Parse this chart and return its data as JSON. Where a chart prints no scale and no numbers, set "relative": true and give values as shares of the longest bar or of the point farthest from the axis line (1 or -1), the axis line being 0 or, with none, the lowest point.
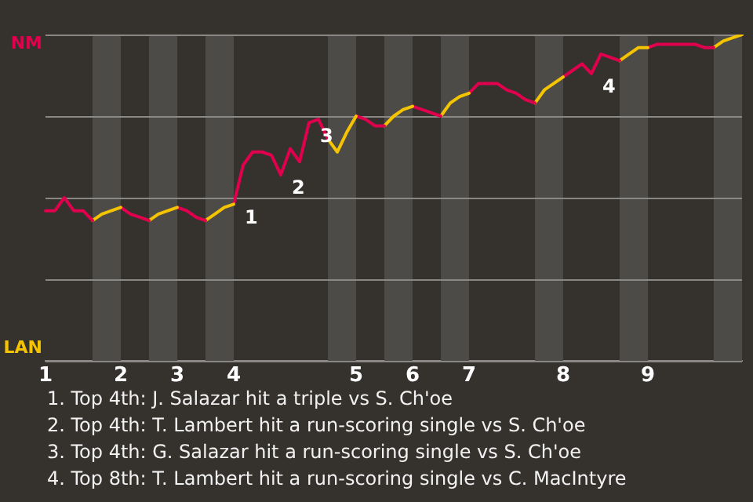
{
  "chart_data": {
    "type": "line",
    "relative": true,
    "categories": [
      "1",
      null,
      null,
      null,
      null,
      null,
      null,
      null,
      "2",
      null,
      null,
      null,
      null,
      null,
      "3",
      null,
      null,
      null,
      null,
      null,
      "4",
      null,
      null,
      null,
      null,
      null,
      null,
      null,
      null,
      null,
      null,
      null,
      null,
      "5",
      null,
      null,
      null,
      null,
      null,
      "6",
      null,
      null,
      null,
      null,
      null,
      "7",
      null,
      null,
      null,
      null,
      null,
      null,
      null,
      null,
      null,
      "8",
      null,
      null,
      null,
      null,
      null,
      null,
      null,
      null,
      "9",
      null,
      null,
      null,
      null,
      null,
      null,
      null,
      null,
      null,
      null
    ],
    "series": [
      {
        "name": "NM",
        "color": "#e0004d",
        "values": [
          0.46,
          0.46,
          0.5,
          0.46,
          0.46,
          0.43,
          null,
          null,
          null,
          null,
          null,
          null,
          null,
          null,
          null,
          null,
          null,
          null,
          null,
          null,
          null,
          null,
          null,
          null,
          null,
          null,
          null,
          null,
          null,
          null,
          null,
          null,
          null,
          null,
          null,
          null,
          null,
          null,
          null,
          null,
          null,
          null,
          null,
          null,
          null,
          null,
          null,
          null,
          null,
          null,
          null,
          null,
          null,
          null,
          null,
          null,
          null,
          null,
          null,
          null,
          null,
          null,
          null,
          null,
          null,
          null,
          null,
          null,
          null,
          null,
          null,
          null,
          null,
          null,
          null
        ]
      },
      {
        "name": "LAN",
        "color": "#f5c400",
        "values": [
          null,
          null,
          null,
          null,
          null,
          0.43,
          0.45,
          0.46,
          0.47,
          null,
          null,
          null,
          null,
          null,
          null,
          null,
          null,
          null,
          null,
          null,
          null,
          null,
          null,
          null,
          null,
          null,
          null,
          null,
          null,
          null,
          null,
          null,
          null,
          null,
          null,
          null,
          null,
          null,
          null,
          null,
          null,
          null,
          null,
          null,
          null,
          null,
          null,
          null,
          null,
          null,
          null,
          null,
          null,
          null,
          null,
          null,
          null,
          null,
          null,
          null,
          null,
          null,
          null,
          null,
          null,
          null,
          null,
          null,
          null,
          null,
          null,
          null,
          null,
          null,
          null
        ]
      },
      {
        "color": "#e0004d",
        "values": [
          null,
          null,
          null,
          null,
          null,
          null,
          null,
          null,
          0.47,
          0.45,
          0.44,
          0.43,
          null,
          null,
          null,
          null,
          null,
          null,
          null,
          null,
          null,
          null,
          null,
          null,
          null,
          null,
          null,
          null,
          null,
          null,
          null,
          null,
          null,
          null,
          null,
          null,
          null,
          null,
          null,
          null,
          null,
          null,
          null,
          null,
          null,
          null,
          null,
          null,
          null,
          null,
          null,
          null,
          null,
          null,
          null,
          null,
          null,
          null,
          null,
          null,
          null,
          null,
          null,
          null,
          null,
          null,
          null,
          null,
          null,
          null,
          null,
          null,
          null,
          null,
          null
        ]
      },
      {
        "color": "#f5c400",
        "values": [
          null,
          null,
          null,
          null,
          null,
          null,
          null,
          null,
          null,
          null,
          null,
          0.43,
          0.45,
          0.46,
          0.47,
          null,
          null,
          null,
          null,
          null,
          null,
          null,
          null,
          null,
          null,
          null,
          null,
          null,
          null,
          null,
          null,
          null,
          null,
          null,
          null,
          null,
          null,
          null,
          null,
          null,
          null,
          null,
          null,
          null,
          null,
          null,
          null,
          null,
          null,
          null,
          null,
          null,
          null,
          null,
          null,
          null,
          null,
          null,
          null,
          null,
          null,
          null,
          null,
          null,
          null,
          null,
          null,
          null,
          null,
          null,
          null,
          null,
          null,
          null,
          null
        ]
      },
      {
        "color": "#e0004d",
        "values": [
          null,
          null,
          null,
          null,
          null,
          null,
          null,
          null,
          null,
          null,
          null,
          null,
          null,
          null,
          0.47,
          0.46,
          0.44,
          0.43,
          null,
          null,
          null,
          null,
          null,
          null,
          null,
          null,
          null,
          null,
          null,
          null,
          null,
          null,
          null,
          null,
          null,
          null,
          null,
          null,
          null,
          null,
          null,
          null,
          null,
          null,
          null,
          null,
          null,
          null,
          null,
          null,
          null,
          null,
          null,
          null,
          null,
          null,
          null,
          null,
          null,
          null,
          null,
          null,
          null,
          null,
          null,
          null,
          null,
          null,
          null,
          null,
          null,
          null,
          null,
          null,
          null
        ]
      },
      {
        "color": "#f5c400",
        "values": [
          null,
          null,
          null,
          null,
          null,
          null,
          null,
          null,
          null,
          null,
          null,
          null,
          null,
          null,
          null,
          null,
          null,
          0.43,
          0.45,
          0.47,
          0.48,
          null,
          null,
          null,
          null,
          null,
          null,
          null,
          null,
          null,
          null,
          null,
          null,
          null,
          null,
          null,
          null,
          null,
          null,
          null,
          null,
          null,
          null,
          null,
          null,
          null,
          null,
          null,
          null,
          null,
          null,
          null,
          null,
          null,
          null,
          null,
          null,
          null,
          null,
          null,
          null,
          null,
          null,
          null,
          null,
          null,
          null,
          null,
          null,
          null,
          null,
          null,
          null,
          null,
          null
        ]
      },
      {
        "color": "#e0004d",
        "values": [
          null,
          null,
          null,
          null,
          null,
          null,
          null,
          null,
          null,
          null,
          null,
          null,
          null,
          null,
          null,
          null,
          null,
          null,
          null,
          null,
          0.48,
          0.6,
          0.64,
          0.64,
          0.63,
          0.57,
          0.65,
          0.61,
          0.73,
          0.74,
          0.68,
          null,
          null,
          null,
          null,
          null,
          null,
          null,
          null,
          null,
          null,
          null,
          null,
          null,
          null,
          null,
          null,
          null,
          null,
          null,
          null,
          null,
          null,
          null,
          null,
          null,
          null,
          null,
          null,
          null,
          null,
          null,
          null,
          null,
          null,
          null,
          null,
          null,
          null,
          null,
          null,
          null,
          null,
          null,
          null
        ]
      },
      {
        "color": "#f5c400",
        "values": [
          null,
          null,
          null,
          null,
          null,
          null,
          null,
          null,
          null,
          null,
          null,
          null,
          null,
          null,
          null,
          null,
          null,
          null,
          null,
          null,
          null,
          null,
          null,
          null,
          null,
          null,
          null,
          null,
          null,
          null,
          0.68,
          0.64,
          0.7,
          0.75,
          null,
          null,
          null,
          null,
          null,
          null,
          null,
          null,
          null,
          null,
          null,
          null,
          null,
          null,
          null,
          null,
          null,
          null,
          null,
          null,
          null,
          null,
          null,
          null,
          null,
          null,
          null,
          null,
          null,
          null,
          null,
          null,
          null,
          null,
          null,
          null,
          null,
          null,
          null,
          null,
          null
        ]
      },
      {
        "color": "#e0004d",
        "values": [
          null,
          null,
          null,
          null,
          null,
          null,
          null,
          null,
          null,
          null,
          null,
          null,
          null,
          null,
          null,
          null,
          null,
          null,
          null,
          null,
          null,
          null,
          null,
          null,
          null,
          null,
          null,
          null,
          null,
          null,
          null,
          null,
          null,
          0.75,
          0.74,
          0.72,
          0.72,
          null,
          null,
          null,
          null,
          null,
          null,
          null,
          null,
          null,
          null,
          null,
          null,
          null,
          null,
          null,
          null,
          null,
          null,
          null,
          null,
          null,
          null,
          null,
          null,
          null,
          null,
          null,
          null,
          null,
          null,
          null,
          null,
          null,
          null,
          null,
          null,
          null,
          null
        ]
      },
      {
        "color": "#f5c400",
        "values": [
          null,
          null,
          null,
          null,
          null,
          null,
          null,
          null,
          null,
          null,
          null,
          null,
          null,
          null,
          null,
          null,
          null,
          null,
          null,
          null,
          null,
          null,
          null,
          null,
          null,
          null,
          null,
          null,
          null,
          null,
          null,
          null,
          null,
          null,
          null,
          null,
          0.72,
          0.75,
          0.77,
          0.78,
          null,
          null,
          null,
          null,
          null,
          null,
          null,
          null,
          null,
          null,
          null,
          null,
          null,
          null,
          null,
          null,
          null,
          null,
          null,
          null,
          null,
          null,
          null,
          null,
          null,
          null,
          null,
          null,
          null,
          null,
          null,
          null,
          null,
          null,
          null
        ]
      },
      {
        "color": "#e0004d",
        "values": [
          null,
          null,
          null,
          null,
          null,
          null,
          null,
          null,
          null,
          null,
          null,
          null,
          null,
          null,
          null,
          null,
          null,
          null,
          null,
          null,
          null,
          null,
          null,
          null,
          null,
          null,
          null,
          null,
          null,
          null,
          null,
          null,
          null,
          null,
          null,
          null,
          null,
          null,
          null,
          0.78,
          0.77,
          0.76,
          0.75,
          null,
          null,
          null,
          null,
          null,
          null,
          null,
          null,
          null,
          null,
          null,
          null,
          null,
          null,
          null,
          null,
          null,
          null,
          null,
          null,
          null,
          null,
          null,
          null,
          null,
          null,
          null,
          null,
          null,
          null,
          null,
          null
        ]
      },
      {
        "color": "#f5c400",
        "values": [
          null,
          null,
          null,
          null,
          null,
          null,
          null,
          null,
          null,
          null,
          null,
          null,
          null,
          null,
          null,
          null,
          null,
          null,
          null,
          null,
          null,
          null,
          null,
          null,
          null,
          null,
          null,
          null,
          null,
          null,
          null,
          null,
          null,
          null,
          null,
          null,
          null,
          null,
          null,
          null,
          null,
          null,
          0.75,
          0.79,
          0.81,
          0.82,
          null,
          null,
          null,
          null,
          null,
          null,
          null,
          null,
          null,
          null,
          null,
          null,
          null,
          null,
          null,
          null,
          null,
          null,
          null,
          null,
          null,
          null,
          null,
          null,
          null,
          null,
          null,
          null,
          null
        ]
      },
      {
        "color": "#e0004d",
        "values": [
          null,
          null,
          null,
          null,
          null,
          null,
          null,
          null,
          null,
          null,
          null,
          null,
          null,
          null,
          null,
          null,
          null,
          null,
          null,
          null,
          null,
          null,
          null,
          null,
          null,
          null,
          null,
          null,
          null,
          null,
          null,
          null,
          null,
          null,
          null,
          null,
          null,
          null,
          null,
          null,
          null,
          null,
          null,
          null,
          null,
          0.82,
          0.85,
          0.85,
          0.85,
          0.83,
          0.82,
          0.8,
          0.79,
          null,
          null,
          null,
          null,
          null,
          null,
          null,
          null,
          null,
          null,
          null,
          null,
          null,
          null,
          null,
          null,
          null,
          null,
          null,
          null,
          null,
          null
        ]
      },
      {
        "color": "#f5c400",
        "values": [
          null,
          null,
          null,
          null,
          null,
          null,
          null,
          null,
          null,
          null,
          null,
          null,
          null,
          null,
          null,
          null,
          null,
          null,
          null,
          null,
          null,
          null,
          null,
          null,
          null,
          null,
          null,
          null,
          null,
          null,
          null,
          null,
          null,
          null,
          null,
          null,
          null,
          null,
          null,
          null,
          null,
          null,
          null,
          null,
          null,
          null,
          null,
          null,
          null,
          null,
          null,
          null,
          0.79,
          0.83,
          0.85,
          0.87,
          null,
          null,
          null,
          null,
          null,
          null,
          null,
          null,
          null,
          null,
          null,
          null,
          null,
          null,
          null,
          null,
          null,
          null,
          null
        ]
      },
      {
        "color": "#e0004d",
        "values": [
          null,
          null,
          null,
          null,
          null,
          null,
          null,
          null,
          null,
          null,
          null,
          null,
          null,
          null,
          null,
          null,
          null,
          null,
          null,
          null,
          null,
          null,
          null,
          null,
          null,
          null,
          null,
          null,
          null,
          null,
          null,
          null,
          null,
          null,
          null,
          null,
          null,
          null,
          null,
          null,
          null,
          null,
          null,
          null,
          null,
          null,
          null,
          null,
          null,
          null,
          null,
          null,
          null,
          null,
          null,
          0.87,
          0.89,
          0.91,
          0.88,
          0.94,
          0.93,
          0.92,
          null,
          null,
          null,
          null,
          null,
          null,
          null,
          null,
          null,
          null,
          null,
          null,
          null
        ]
      },
      {
        "color": "#f5c400",
        "values": [
          null,
          null,
          null,
          null,
          null,
          null,
          null,
          null,
          null,
          null,
          null,
          null,
          null,
          null,
          null,
          null,
          null,
          null,
          null,
          null,
          null,
          null,
          null,
          null,
          null,
          null,
          null,
          null,
          null,
          null,
          null,
          null,
          null,
          null,
          null,
          null,
          null,
          null,
          null,
          null,
          null,
          null,
          null,
          null,
          null,
          null,
          null,
          null,
          null,
          null,
          null,
          null,
          null,
          null,
          null,
          null,
          null,
          null,
          null,
          null,
          null,
          0.92,
          0.94,
          0.96,
          0.96,
          null,
          null,
          null,
          null,
          null,
          null,
          null,
          null,
          null,
          null
        ]
      },
      {
        "color": "#e0004d",
        "values": [
          null,
          null,
          null,
          null,
          null,
          null,
          null,
          null,
          null,
          null,
          null,
          null,
          null,
          null,
          null,
          null,
          null,
          null,
          null,
          null,
          null,
          null,
          null,
          null,
          null,
          null,
          null,
          null,
          null,
          null,
          null,
          null,
          null,
          null,
          null,
          null,
          null,
          null,
          null,
          null,
          null,
          null,
          null,
          null,
          null,
          null,
          null,
          null,
          null,
          null,
          null,
          null,
          null,
          null,
          null,
          null,
          null,
          null,
          null,
          null,
          null,
          null,
          null,
          null,
          0.96,
          0.97,
          0.97,
          0.97,
          0.97,
          0.97,
          0.96,
          0.96,
          null,
          null,
          null
        ]
      },
      {
        "color": "#f5c400",
        "values": [
          null,
          null,
          null,
          null,
          null,
          null,
          null,
          null,
          null,
          null,
          null,
          null,
          null,
          null,
          null,
          null,
          null,
          null,
          null,
          null,
          null,
          null,
          null,
          null,
          null,
          null,
          null,
          null,
          null,
          null,
          null,
          null,
          null,
          null,
          null,
          null,
          null,
          null,
          null,
          null,
          null,
          null,
          null,
          null,
          null,
          null,
          null,
          null,
          null,
          null,
          null,
          null,
          null,
          null,
          null,
          null,
          null,
          null,
          null,
          null,
          null,
          null,
          null,
          null,
          null,
          null,
          null,
          null,
          null,
          null,
          null,
          0.96,
          0.98,
          0.99,
          1.0
        ]
      }
    ],
    "grid": "y",
    "legend": false,
    "marker": "none",
    "line_style": "solid",
    "annotations": [
      "1",
      "2",
      "3",
      "4",
      "1. Top 4th: J. Salazar hit a triple vs S. Ch'oe",
      "2. Top 4th: T. Lambert hit a run-scoring single vs S. Ch'oe",
      "3. Top 4th: G. Salazar hit a run-scoring single vs S. Ch'oe",
      "4. Top 8th: T. Lambert hit a run-scoring single vs C. MacIntyre"
    ]
  }
}
